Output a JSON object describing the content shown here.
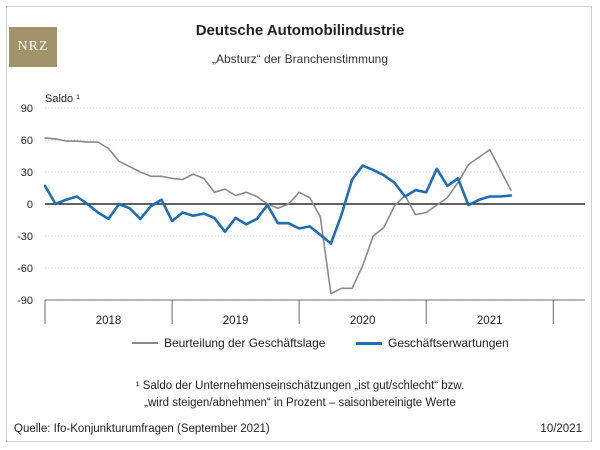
{
  "brand": {
    "logo_text": "NRZ"
  },
  "chart_data": {
    "type": "line",
    "title": "Deutsche Automobilindustrie",
    "subtitle": "„Absturz“ der Branchenstimmung",
    "ylabel": "Saldo ¹",
    "ylim": [
      -90,
      90
    ],
    "yticks": [
      90,
      60,
      30,
      0,
      -30,
      -60,
      -90
    ],
    "xlim": [
      2017.5,
      2021.75
    ],
    "xticks": [
      {
        "label": "2018",
        "value": 2018.0
      },
      {
        "label": "2019",
        "value": 2019.0
      },
      {
        "label": "2020",
        "value": 2020.0
      },
      {
        "label": "2021",
        "value": 2021.0
      }
    ],
    "start": 2017.5,
    "step": 0.083333,
    "series": [
      {
        "name": "Beurteilung der Geschäftslage",
        "color": "#8a8a8a",
        "values": [
          62,
          61,
          59,
          59,
          58,
          58,
          52,
          40,
          35,
          30,
          26,
          26,
          24,
          23,
          28,
          24,
          11,
          14,
          8,
          11,
          7,
          0,
          -4,
          0,
          11,
          6,
          -12,
          -84,
          -79,
          -79,
          -58,
          -30,
          -22,
          -2,
          8,
          -10,
          -8,
          -1,
          6,
          20,
          37,
          44,
          51,
          32,
          13
        ]
      },
      {
        "name": "Geschäftserwartungen",
        "color": "#1f6db5",
        "values": [
          17,
          0,
          4,
          7,
          0,
          -8,
          -14,
          0,
          -4,
          -14,
          -2,
          4,
          -16,
          -8,
          -11,
          -9,
          -13,
          -26,
          -13,
          -19,
          -14,
          -1,
          -18,
          -18,
          -23,
          -21,
          -29,
          -37,
          -10,
          23,
          36,
          32,
          27,
          20,
          7,
          13,
          11,
          33,
          17,
          24,
          -1,
          4,
          7,
          7,
          8
        ]
      }
    ],
    "legend_position": "bottom"
  },
  "footnote": {
    "line1": "¹ Saldo der Unternehmenseinschätzungen „ist gut/schlecht“ bzw.",
    "line2": "„wird steigen/abnehmen“ in Prozent – saisonbereinigte Werte"
  },
  "source": "Quelle: Ifo-Konjunkturumfragen (September 2021)",
  "date": "10/2021"
}
